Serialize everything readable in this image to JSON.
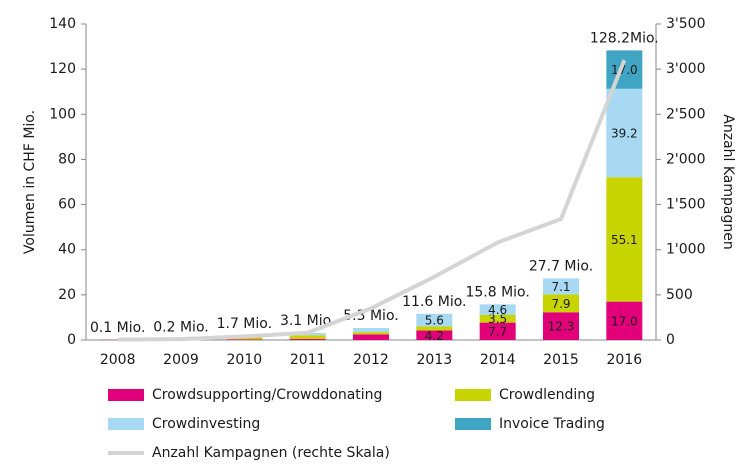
{
  "chart_data": {
    "type": "bar",
    "y_label": "Volumen in CHF Mio.",
    "y2_label": "Anzahl Kampagnen",
    "categories": [
      "2008",
      "2009",
      "2010",
      "2011",
      "2012",
      "2013",
      "2014",
      "2015",
      "2016"
    ],
    "total_labels": [
      "0.1 Mio.",
      "0.2 Mio.",
      "1.7 Mio.",
      "3.1 Mio.",
      "5.3 Mio.",
      "11.6 Mio.",
      "15.8 Mio.",
      "27.7 Mio.",
      "128.2Mio."
    ],
    "series": [
      {
        "name": "Crowdsupporting/Crowddonating",
        "color": "#e2007a",
        "values": [
          0.1,
          0.2,
          0.3,
          0.5,
          2.5,
          4.2,
          7.7,
          12.3,
          17.0
        ],
        "value_labels": [
          null,
          null,
          null,
          null,
          null,
          "4.2",
          "7.7",
          "12.3",
          "17.0"
        ]
      },
      {
        "name": "Crowdlending",
        "color": "#c8d400",
        "values": [
          0,
          0,
          1.2,
          1.6,
          1.0,
          1.8,
          3.5,
          7.9,
          55.1
        ],
        "value_labels": [
          null,
          null,
          null,
          null,
          null,
          null,
          "3.5",
          "7.9",
          "55.1"
        ]
      },
      {
        "name": "Crowdinvesting",
        "color": "#a8d9f3",
        "values": [
          0,
          0,
          0.2,
          1.0,
          1.8,
          5.6,
          4.6,
          7.1,
          39.2
        ],
        "value_labels": [
          null,
          null,
          null,
          null,
          null,
          "5.6",
          "4.6",
          "7.1",
          "39.2"
        ]
      },
      {
        "name": "Invoice Trading",
        "color": "#3fa5c3",
        "values": [
          0,
          0,
          0,
          0,
          0,
          0,
          0,
          0,
          17.0
        ],
        "value_labels": [
          null,
          null,
          null,
          null,
          null,
          null,
          null,
          null,
          "17.0"
        ]
      },
      {
        "name": "Anzahl Kampagnen (rechte Skala)",
        "color": "#d4d4d4",
        "axis": "y2",
        "type": "line",
        "values": [
          5,
          10,
          40,
          80,
          350,
          700,
          1080,
          1340,
          3100
        ]
      }
    ],
    "ylim": [
      0,
      140
    ],
    "yticks": [
      0,
      20,
      40,
      60,
      80,
      100,
      120,
      140
    ],
    "y2lim": [
      0,
      3500
    ],
    "y2ticks": [
      0,
      500,
      {
        "value": 1000,
        "label": "1'000"
      },
      {
        "value": 1500,
        "label": "1'500"
      },
      {
        "value": 2000,
        "label": "2'000"
      },
      {
        "value": 2500,
        "label": "2'500"
      },
      {
        "value": 3000,
        "label": "3'000"
      },
      {
        "value": 3500,
        "label": "3'500"
      }
    ]
  }
}
